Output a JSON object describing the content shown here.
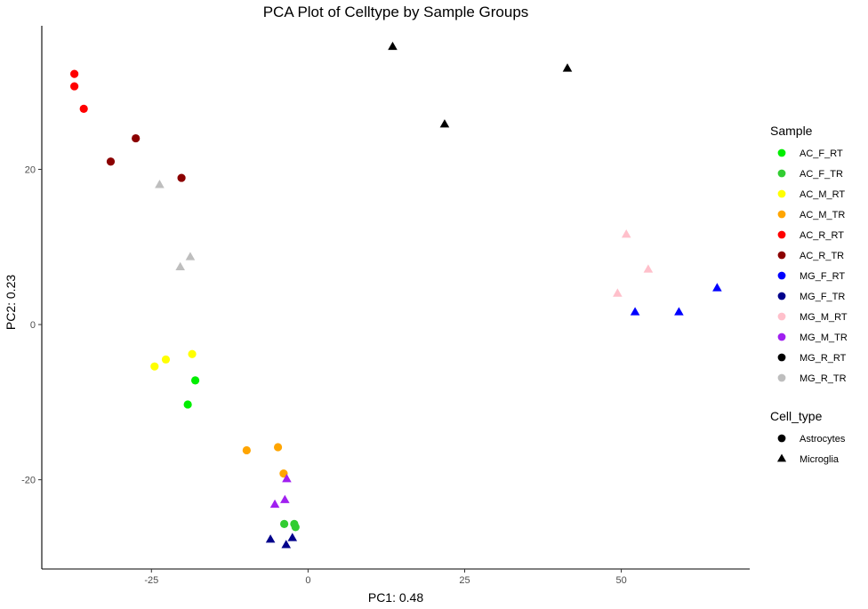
{
  "chart_data": {
    "type": "scatter",
    "title": "PCA Plot of Celltype by Sample Groups",
    "xlabel": "PC1: 0.48",
    "ylabel": "PC2: 0.23",
    "xlim": [
      -42.5,
      70.5
    ],
    "ylim": [
      -31.5,
      38.5
    ],
    "x_ticks": [
      -25,
      0,
      25,
      50
    ],
    "y_ticks": [
      -20,
      0,
      20
    ],
    "grid": false,
    "legend_position": "right",
    "colors": {
      "AC_F_RT": "#00ee00",
      "AC_F_TR": "#32cd32",
      "AC_M_RT": "#ffff00",
      "AC_M_TR": "#ffa500",
      "AC_R_RT": "#ff0000",
      "AC_R_TR": "#8b0000",
      "MG_F_RT": "#0000ff",
      "MG_F_TR": "#00008b",
      "MG_M_RT": "#ffc0cb",
      "MG_M_TR": "#a020f0",
      "MG_R_RT": "#000000",
      "MG_R_TR": "#bebebe"
    },
    "legends": [
      {
        "title": "Sample",
        "entries": [
          {
            "label": "AC_F_RT",
            "shape": "circle"
          },
          {
            "label": "AC_F_TR",
            "shape": "circle"
          },
          {
            "label": "AC_M_RT",
            "shape": "circle"
          },
          {
            "label": "AC_M_TR",
            "shape": "circle"
          },
          {
            "label": "AC_R_RT",
            "shape": "circle"
          },
          {
            "label": "AC_R_TR",
            "shape": "circle"
          },
          {
            "label": "MG_F_RT",
            "shape": "circle"
          },
          {
            "label": "MG_F_TR",
            "shape": "circle"
          },
          {
            "label": "MG_M_RT",
            "shape": "circle"
          },
          {
            "label": "MG_M_TR",
            "shape": "circle"
          },
          {
            "label": "MG_R_RT",
            "shape": "circle"
          },
          {
            "label": "MG_R_TR",
            "shape": "circle"
          }
        ]
      },
      {
        "title": "Cell_type",
        "entries": [
          {
            "label": "Astrocytes",
            "shape": "circle"
          },
          {
            "label": "Microglia",
            "shape": "triangle"
          }
        ]
      }
    ],
    "points": [
      {
        "sample": "AC_F_RT",
        "cell_type": "Astrocytes",
        "x": -18.0,
        "y": -7.2
      },
      {
        "sample": "AC_F_RT",
        "cell_type": "Astrocytes",
        "x": -19.2,
        "y": -10.3
      },
      {
        "sample": "AC_F_TR",
        "cell_type": "Astrocytes",
        "x": -3.8,
        "y": -25.7
      },
      {
        "sample": "AC_F_TR",
        "cell_type": "Astrocytes",
        "x": -2.2,
        "y": -25.7
      },
      {
        "sample": "AC_F_TR",
        "cell_type": "Astrocytes",
        "x": -2.0,
        "y": -26.1
      },
      {
        "sample": "AC_M_RT",
        "cell_type": "Astrocytes",
        "x": -18.5,
        "y": -3.8
      },
      {
        "sample": "AC_M_RT",
        "cell_type": "Astrocytes",
        "x": -22.7,
        "y": -4.5
      },
      {
        "sample": "AC_M_RT",
        "cell_type": "Astrocytes",
        "x": -24.5,
        "y": -5.4
      },
      {
        "sample": "AC_M_TR",
        "cell_type": "Astrocytes",
        "x": -9.8,
        "y": -16.2
      },
      {
        "sample": "AC_M_TR",
        "cell_type": "Astrocytes",
        "x": -4.8,
        "y": -15.8
      },
      {
        "sample": "AC_M_TR",
        "cell_type": "Astrocytes",
        "x": -3.9,
        "y": -19.2
      },
      {
        "sample": "AC_R_RT",
        "cell_type": "Astrocytes",
        "x": -37.3,
        "y": 32.3
      },
      {
        "sample": "AC_R_RT",
        "cell_type": "Astrocytes",
        "x": -37.3,
        "y": 30.7
      },
      {
        "sample": "AC_R_RT",
        "cell_type": "Astrocytes",
        "x": -35.8,
        "y": 27.8
      },
      {
        "sample": "AC_R_TR",
        "cell_type": "Astrocytes",
        "x": -27.5,
        "y": 24.0
      },
      {
        "sample": "AC_R_TR",
        "cell_type": "Astrocytes",
        "x": -31.5,
        "y": 21.0
      },
      {
        "sample": "AC_R_TR",
        "cell_type": "Astrocytes",
        "x": -20.2,
        "y": 18.9
      },
      {
        "sample": "MG_F_RT",
        "cell_type": "Microglia",
        "x": 52.2,
        "y": 1.6
      },
      {
        "sample": "MG_F_RT",
        "cell_type": "Microglia",
        "x": 59.2,
        "y": 1.6
      },
      {
        "sample": "MG_F_RT",
        "cell_type": "Microglia",
        "x": 65.3,
        "y": 4.7
      },
      {
        "sample": "MG_F_TR",
        "cell_type": "Microglia",
        "x": -6.0,
        "y": -27.7
      },
      {
        "sample": "MG_F_TR",
        "cell_type": "Microglia",
        "x": -3.5,
        "y": -28.4
      },
      {
        "sample": "MG_F_TR",
        "cell_type": "Microglia",
        "x": -2.5,
        "y": -27.5
      },
      {
        "sample": "MG_M_RT",
        "cell_type": "Microglia",
        "x": 50.8,
        "y": 11.6
      },
      {
        "sample": "MG_M_RT",
        "cell_type": "Microglia",
        "x": 54.3,
        "y": 7.1
      },
      {
        "sample": "MG_M_RT",
        "cell_type": "Microglia",
        "x": 49.4,
        "y": 4.0
      },
      {
        "sample": "MG_M_TR",
        "cell_type": "Microglia",
        "x": -3.4,
        "y": -19.9
      },
      {
        "sample": "MG_M_TR",
        "cell_type": "Microglia",
        "x": -3.7,
        "y": -22.6
      },
      {
        "sample": "MG_M_TR",
        "cell_type": "Microglia",
        "x": -5.3,
        "y": -23.2
      },
      {
        "sample": "MG_R_RT",
        "cell_type": "Microglia",
        "x": 13.5,
        "y": 35.8
      },
      {
        "sample": "MG_R_RT",
        "cell_type": "Microglia",
        "x": 41.4,
        "y": 33.0
      },
      {
        "sample": "MG_R_RT",
        "cell_type": "Microglia",
        "x": 21.8,
        "y": 25.8
      },
      {
        "sample": "MG_R_TR",
        "cell_type": "Microglia",
        "x": -23.7,
        "y": 18.0
      },
      {
        "sample": "MG_R_TR",
        "cell_type": "Microglia",
        "x": -18.8,
        "y": 8.7
      },
      {
        "sample": "MG_R_TR",
        "cell_type": "Microglia",
        "x": -20.4,
        "y": 7.4
      }
    ]
  }
}
